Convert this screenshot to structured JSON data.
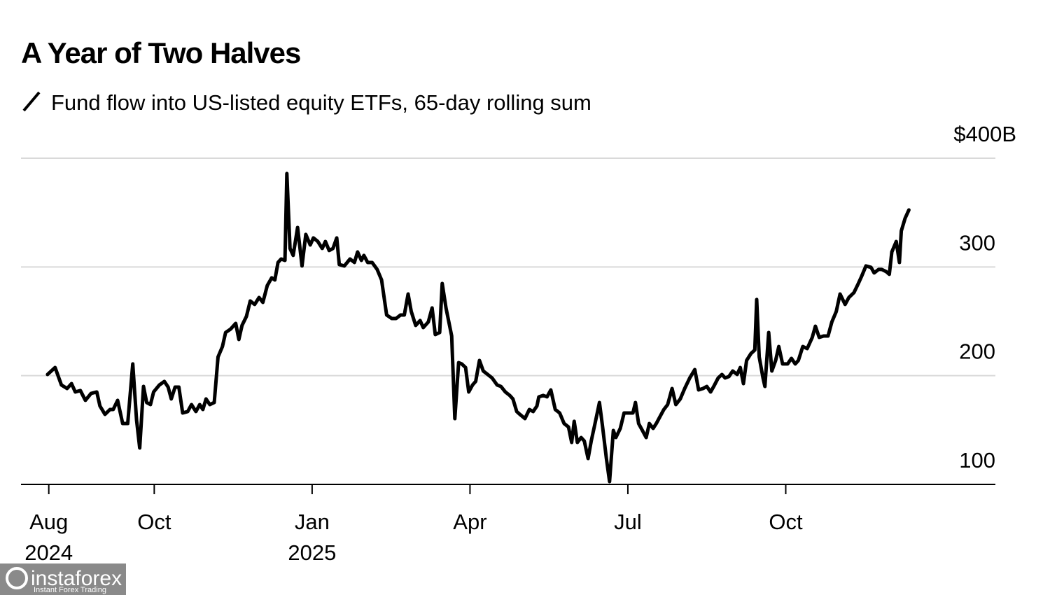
{
  "chart_data": {
    "type": "line",
    "title": "A Year of Two Halves",
    "x": [
      2024.581,
      2024.593,
      2024.603,
      2024.612,
      2024.619,
      2024.625,
      2024.633,
      2024.641,
      2024.65,
      2024.659,
      2024.664,
      2024.672,
      2024.68,
      2024.685,
      2024.692,
      2024.7,
      2024.708,
      2024.716,
      2024.722,
      2024.727,
      2024.733,
      2024.738,
      2024.744,
      2024.749,
      2024.758,
      2024.766,
      2024.772,
      2024.777,
      2024.783,
      2024.789,
      2024.795,
      2024.803,
      2024.809,
      2024.816,
      2024.822,
      2024.827,
      2024.832,
      2024.838,
      2024.845,
      2024.851,
      2024.858,
      2024.863,
      2024.871,
      2024.879,
      2024.884,
      2024.889,
      2024.896,
      2024.902,
      2024.909,
      2024.916,
      2024.922,
      2024.929,
      2024.936,
      2024.941,
      2024.946,
      2024.951,
      2024.957,
      2024.96,
      2024.965,
      2024.97,
      2024.977,
      2024.984,
      2024.99,
      2024.997,
      2025.002,
      2025.009,
      2025.016,
      2025.021,
      2025.027,
      2025.033,
      2025.039,
      2025.043,
      2025.051,
      2025.06,
      2025.067,
      2025.072,
      2025.078,
      2025.082,
      2025.088,
      2025.095,
      2025.103,
      2025.11,
      2025.118,
      2025.126,
      2025.133,
      2025.14,
      2025.146,
      2025.152,
      2025.157,
      2025.164,
      2025.171,
      2025.176,
      2025.184,
      2025.19,
      2025.195,
      2025.202,
      2025.206,
      2025.212,
      2025.221,
      2025.226,
      2025.232,
      2025.237,
      2025.243,
      2025.248,
      2025.254,
      2025.259,
      2025.265,
      2025.271,
      2025.278,
      2025.285,
      2025.293,
      2025.299,
      2025.306,
      2025.313,
      2025.318,
      2025.324,
      2025.329,
      2025.337,
      2025.344,
      2025.35,
      2025.356,
      2025.359,
      2025.366,
      2025.372,
      2025.378,
      2025.385,
      2025.392,
      2025.399,
      2025.406,
      2025.411,
      2025.415,
      2025.42,
      2025.426,
      2025.431,
      2025.437,
      2025.442,
      2025.448,
      2025.455,
      2025.46,
      2025.466,
      2025.471,
      2025.477,
      2025.481,
      2025.488,
      2025.494,
      2025.501,
      2025.508,
      2025.512,
      2025.517,
      2025.523,
      2025.529,
      2025.534,
      2025.54,
      2025.545,
      2025.551,
      2025.557,
      2025.563,
      2025.57,
      2025.576,
      2025.583,
      2025.59,
      2025.598,
      2025.606,
      2025.612,
      2025.619,
      2025.625,
      2025.631,
      2025.636,
      2025.643,
      2025.649,
      2025.654,
      2025.66,
      2025.666,
      2025.673,
      2025.678,
      2025.683,
      2025.688,
      2025.695,
      2025.701,
      2025.704,
      2025.708,
      2025.714,
      2025.717,
      2025.723,
      2025.728,
      2025.734,
      2025.739,
      2025.745,
      2025.753,
      2025.759,
      2025.765,
      2025.77,
      2025.777,
      2025.784,
      2025.792,
      2025.797,
      2025.803,
      2025.81,
      2025.817,
      2025.823,
      2025.83,
      2025.836,
      2025.844,
      2025.85,
      2025.858,
      2025.865,
      2025.87,
      2025.877,
      2025.885,
      2025.89,
      2025.897,
      2025.902,
      2025.909,
      2025.914,
      2025.918,
      2025.925,
      2025.93,
      2025.933,
      2025.939,
      2025.945
    ],
    "series": [
      {
        "name": "Fund flow into US-listed equity ETFs, 65-day rolling sum",
        "color": "#000000",
        "values": [
          201.1,
          207.5,
          191.4,
          188.2,
          192.7,
          185.0,
          186.3,
          177.3,
          183.7,
          185.0,
          172.1,
          164.4,
          168.9,
          168.9,
          177.3,
          156.0,
          156.0,
          210.8,
          159.2,
          133.5,
          190.1,
          175.3,
          173.4,
          185.0,
          191.4,
          194.7,
          189.5,
          178.6,
          189.5,
          189.5,
          165.7,
          167.0,
          173.4,
          167.0,
          173.4,
          168.9,
          178.6,
          173.4,
          175.3,
          217.2,
          226.8,
          239.7,
          242.9,
          248.1,
          233.3,
          246.2,
          254.5,
          268.7,
          265.5,
          271.9,
          267.4,
          282.9,
          290.0,
          288.0,
          304.1,
          307.3,
          306.0,
          385.9,
          317.0,
          310.6,
          336.3,
          300.9,
          329.9,
          320.2,
          326.7,
          323.4,
          317.0,
          323.4,
          315.1,
          317.0,
          326.7,
          302.2,
          300.9,
          307.3,
          304.1,
          313.8,
          306.0,
          310.6,
          304.1,
          304.1,
          297.7,
          288.0,
          255.8,
          252.6,
          252.6,
          255.8,
          255.8,
          275.1,
          259.0,
          246.2,
          250.7,
          244.2,
          249.4,
          262.3,
          237.8,
          239.7,
          284.8,
          262.3,
          236.5,
          160.5,
          212.0,
          210.8,
          207.5,
          185.0,
          191.4,
          194.7,
          214.0,
          204.3,
          201.1,
          197.9,
          191.4,
          190.1,
          185.0,
          181.8,
          178.6,
          167.0,
          164.4,
          160.5,
          168.9,
          167.0,
          172.1,
          180.5,
          181.8,
          180.5,
          186.9,
          168.9,
          165.7,
          156.0,
          152.8,
          138.6,
          158.0,
          138.6,
          143.1,
          139.9,
          123.8,
          139.9,
          156.0,
          175.3,
          152.8,
          123.8,
          102.6,
          149.6,
          143.1,
          151.5,
          165.7,
          165.7,
          165.7,
          175.3,
          156.0,
          149.6,
          143.1,
          156.0,
          151.5,
          156.0,
          162.5,
          168.9,
          173.4,
          188.2,
          173.4,
          178.6,
          188.2,
          197.9,
          205.6,
          186.9,
          188.2,
          190.1,
          185.0,
          190.1,
          197.9,
          201.1,
          197.9,
          199.2,
          204.3,
          201.1,
          207.5,
          192.7,
          214.0,
          220.4,
          223.6,
          270.0,
          217.2,
          197.9,
          190.1,
          239.7,
          204.3,
          214.0,
          226.8,
          210.8,
          210.8,
          215.9,
          210.8,
          214.0,
          226.8,
          224.9,
          235.2,
          245.5,
          235.2,
          236.5,
          236.5,
          249.4,
          259.0,
          275.1,
          265.5,
          271.9,
          276.4,
          284.8,
          291.2,
          300.9,
          299.6,
          294.5,
          297.7,
          297.7,
          295.7,
          293.2,
          313.8,
          323.4,
          304.1,
          333.1,
          344.7,
          352.4
        ]
      }
    ],
    "xlim": [
      2024.539,
      2026.082
    ],
    "xticks": [
      {
        "value": 2024.583,
        "label": "Aug 2024"
      },
      {
        "value": 2024.75,
        "label": "Oct"
      },
      {
        "value": 2025.0,
        "label": "Jan 2025"
      },
      {
        "value": 2025.25,
        "label": "Apr"
      },
      {
        "value": 2025.5,
        "label": "Jul"
      },
      {
        "value": 2025.75,
        "label": "Oct"
      }
    ],
    "ylim": [
      100,
      400
    ],
    "yticks": [
      100,
      200,
      300,
      {
        "value": 400,
        "label": "$400B"
      }
    ],
    "grid": true
  },
  "watermark": {
    "brand": "instaforex",
    "tagline": "Instant Forex Trading"
  }
}
